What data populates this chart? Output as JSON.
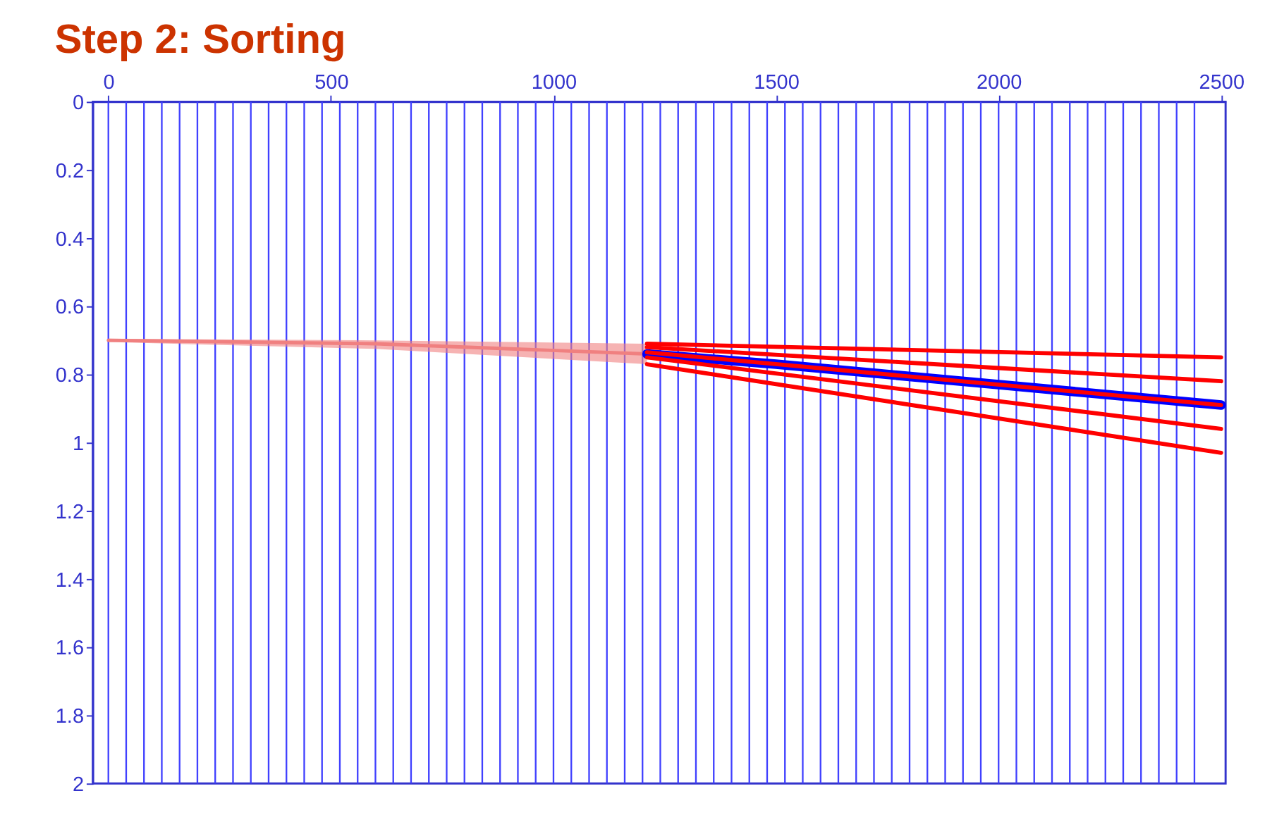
{
  "chart_data": {
    "type": "line",
    "title": "Step 2: Sorting",
    "xlim": [
      -35,
      2510
    ],
    "xticks": [
      0,
      500,
      1000,
      1500,
      2000,
      2500
    ],
    "ylim": [
      2,
      0
    ],
    "yticks": [
      0,
      0.2,
      0.4,
      0.6,
      0.8,
      1,
      1.2,
      1.4,
      1.6,
      1.8,
      2
    ],
    "grid": false,
    "marker": "none",
    "line_style": "solid",
    "series": [
      {
        "type": "line",
        "color": "#f08080",
        "x": [
          0,
          600,
          1210
        ],
        "values": [
          0.7,
          0.71,
          0.74
        ],
        "lower": [
          0.695,
          0.7,
          0.71
        ],
        "upper": [
          0.705,
          0.725,
          0.77
        ]
      },
      {
        "color": "#0000ff",
        "x": [
          1210,
          1500,
          2000,
          2500
        ],
        "values": [
          0.74,
          0.77,
          0.83,
          0.89
        ]
      },
      {
        "color": "#ff0000",
        "x": [
          1210,
          2500
        ],
        "values": [
          0.71,
          0.75
        ]
      },
      {
        "color": "#ff0000",
        "x": [
          1210,
          2500
        ],
        "values": [
          0.72,
          0.82
        ]
      },
      {
        "color": "#ff0000",
        "x": [
          1210,
          2500
        ],
        "values": [
          0.735,
          0.89
        ]
      },
      {
        "color": "#ff0000",
        "x": [
          1210,
          2500
        ],
        "values": [
          0.75,
          0.96
        ]
      },
      {
        "color": "#ff0000",
        "x": [
          1210,
          2500
        ],
        "values": [
          0.77,
          1.03
        ]
      }
    ],
    "ref_lines": [
      {
        "axis": "x",
        "value": 0,
        "color": "#4040ff"
      },
      {
        "axis": "x",
        "value": 40,
        "color": "#4040ff"
      },
      {
        "axis": "x",
        "value": 80,
        "color": "#4040ff"
      },
      {
        "axis": "x",
        "value": 120,
        "color": "#4040ff"
      },
      {
        "axis": "x",
        "value": 160,
        "color": "#4040ff"
      },
      {
        "axis": "x",
        "value": 200,
        "color": "#4040ff"
      },
      {
        "axis": "x",
        "value": 240,
        "color": "#4040ff"
      },
      {
        "axis": "x",
        "value": 280,
        "color": "#4040ff"
      },
      {
        "axis": "x",
        "value": 320,
        "color": "#4040ff"
      },
      {
        "axis": "x",
        "value": 360,
        "color": "#4040ff"
      },
      {
        "axis": "x",
        "value": 400,
        "color": "#4040ff"
      },
      {
        "axis": "x",
        "value": 440,
        "color": "#4040ff"
      },
      {
        "axis": "x",
        "value": 480,
        "color": "#4040ff"
      },
      {
        "axis": "x",
        "value": 520,
        "color": "#4040ff"
      },
      {
        "axis": "x",
        "value": 560,
        "color": "#4040ff"
      },
      {
        "axis": "x",
        "value": 600,
        "color": "#4040ff"
      },
      {
        "axis": "x",
        "value": 640,
        "color": "#4040ff"
      },
      {
        "axis": "x",
        "value": 680,
        "color": "#4040ff"
      },
      {
        "axis": "x",
        "value": 720,
        "color": "#4040ff"
      },
      {
        "axis": "x",
        "value": 760,
        "color": "#4040ff"
      },
      {
        "axis": "x",
        "value": 800,
        "color": "#4040ff"
      },
      {
        "axis": "x",
        "value": 840,
        "color": "#4040ff"
      },
      {
        "axis": "x",
        "value": 880,
        "color": "#4040ff"
      },
      {
        "axis": "x",
        "value": 920,
        "color": "#4040ff"
      },
      {
        "axis": "x",
        "value": 960,
        "color": "#4040ff"
      },
      {
        "axis": "x",
        "value": 1000,
        "color": "#4040ff"
      },
      {
        "axis": "x",
        "value": 1040,
        "color": "#4040ff"
      },
      {
        "axis": "x",
        "value": 1080,
        "color": "#4040ff"
      },
      {
        "axis": "x",
        "value": 1120,
        "color": "#4040ff"
      },
      {
        "axis": "x",
        "value": 1160,
        "color": "#4040ff"
      },
      {
        "axis": "x",
        "value": 1200,
        "color": "#4040ff"
      },
      {
        "axis": "x",
        "value": 1240,
        "color": "#4040ff"
      },
      {
        "axis": "x",
        "value": 1280,
        "color": "#4040ff"
      },
      {
        "axis": "x",
        "value": 1320,
        "color": "#4040ff"
      },
      {
        "axis": "x",
        "value": 1360,
        "color": "#4040ff"
      },
      {
        "axis": "x",
        "value": 1400,
        "color": "#4040ff"
      },
      {
        "axis": "x",
        "value": 1440,
        "color": "#4040ff"
      },
      {
        "axis": "x",
        "value": 1480,
        "color": "#4040ff"
      },
      {
        "axis": "x",
        "value": 1520,
        "color": "#4040ff"
      },
      {
        "axis": "x",
        "value": 1560,
        "color": "#4040ff"
      },
      {
        "axis": "x",
        "value": 1600,
        "color": "#4040ff"
      },
      {
        "axis": "x",
        "value": 1640,
        "color": "#4040ff"
      },
      {
        "axis": "x",
        "value": 1680,
        "color": "#4040ff"
      },
      {
        "axis": "x",
        "value": 1720,
        "color": "#4040ff"
      },
      {
        "axis": "x",
        "value": 1760,
        "color": "#4040ff"
      },
      {
        "axis": "x",
        "value": 1800,
        "color": "#4040ff"
      },
      {
        "axis": "x",
        "value": 1840,
        "color": "#4040ff"
      },
      {
        "axis": "x",
        "value": 1880,
        "color": "#4040ff"
      },
      {
        "axis": "x",
        "value": 1920,
        "color": "#4040ff"
      },
      {
        "axis": "x",
        "value": 1960,
        "color": "#4040ff"
      },
      {
        "axis": "x",
        "value": 2000,
        "color": "#4040ff"
      },
      {
        "axis": "x",
        "value": 2040,
        "color": "#4040ff"
      },
      {
        "axis": "x",
        "value": 2080,
        "color": "#4040ff"
      },
      {
        "axis": "x",
        "value": 2120,
        "color": "#4040ff"
      },
      {
        "axis": "x",
        "value": 2160,
        "color": "#4040ff"
      },
      {
        "axis": "x",
        "value": 2200,
        "color": "#4040ff"
      },
      {
        "axis": "x",
        "value": 2240,
        "color": "#4040ff"
      },
      {
        "axis": "x",
        "value": 2280,
        "color": "#4040ff"
      },
      {
        "axis": "x",
        "value": 2320,
        "color": "#4040ff"
      },
      {
        "axis": "x",
        "value": 2360,
        "color": "#4040ff"
      },
      {
        "axis": "x",
        "value": 2400,
        "color": "#4040ff"
      },
      {
        "axis": "x",
        "value": 2440,
        "color": "#4040ff"
      }
    ]
  }
}
